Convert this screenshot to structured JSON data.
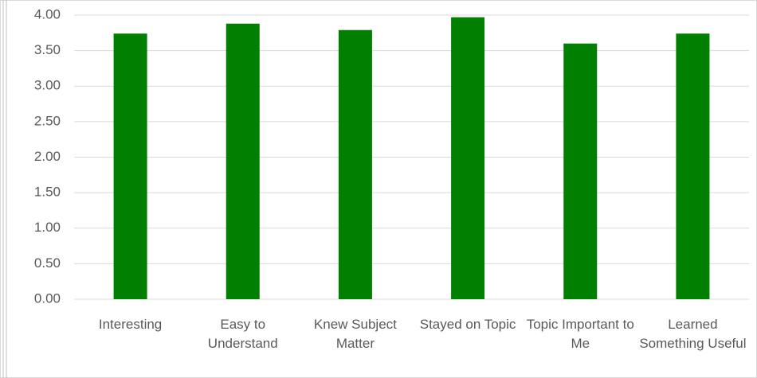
{
  "chart_data": {
    "type": "bar",
    "categories": [
      "Interesting",
      "Easy to Understand",
      "Knew Subject Matter",
      "Stayed on Topic",
      "Topic Important to Me",
      "Learned Something Useful"
    ],
    "values": [
      3.74,
      3.88,
      3.79,
      3.97,
      3.6,
      3.74
    ],
    "color": "#007f00",
    "ylim": [
      0,
      4
    ],
    "yticks": [
      {
        "value": 0,
        "label": "0.00"
      },
      {
        "value": 0.5,
        "label": "0.50"
      },
      {
        "value": 1,
        "label": "1.00"
      },
      {
        "value": 1.5,
        "label": "1.50"
      },
      {
        "value": 2,
        "label": "2.00"
      },
      {
        "value": 2.5,
        "label": "2.50"
      },
      {
        "value": 3,
        "label": "3.00"
      },
      {
        "value": 3.5,
        "label": "3.50"
      },
      {
        "value": 4,
        "label": "4.00"
      }
    ],
    "grid": true
  }
}
